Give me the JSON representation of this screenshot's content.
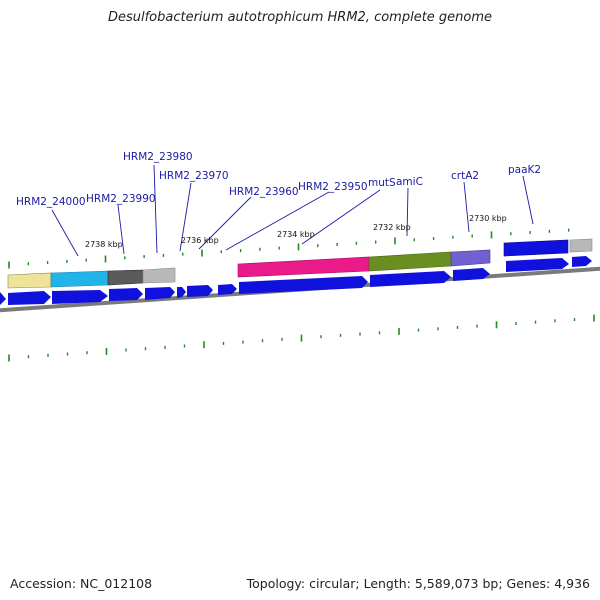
{
  "title": "Desulfobacterium autotrophicum HRM2, complete genome",
  "footer": {
    "accession": "Accession: NC_012108",
    "topology": "Topology: circular; Length: 5,589,073 bp; Genes: 4,936"
  },
  "gene_labels": [
    "HRM2_24000",
    "HRM2_23990",
    "HRM2_23980",
    "HRM2_23970",
    "HRM2_23960",
    "HRM2_23950",
    "mutS",
    "amiC",
    "crtA2",
    "paaK2"
  ],
  "kbp_labels": [
    "2738 kbp",
    "2736 kbp",
    "2734 kbp",
    "2732 kbp",
    "2730 kbp"
  ],
  "colors": {
    "cds": "#1111dd",
    "tick": "#228b22",
    "backbone": "#777777",
    "khaki": "#efe39a",
    "cyan": "#22b4e8",
    "darkgray": "#5a5a5a",
    "lightgray": "#b8b8b8",
    "magenta": "#ea1a8a",
    "olive": "#6b8e23",
    "purple": "#7060d0",
    "label": "#1a1aa6"
  }
}
